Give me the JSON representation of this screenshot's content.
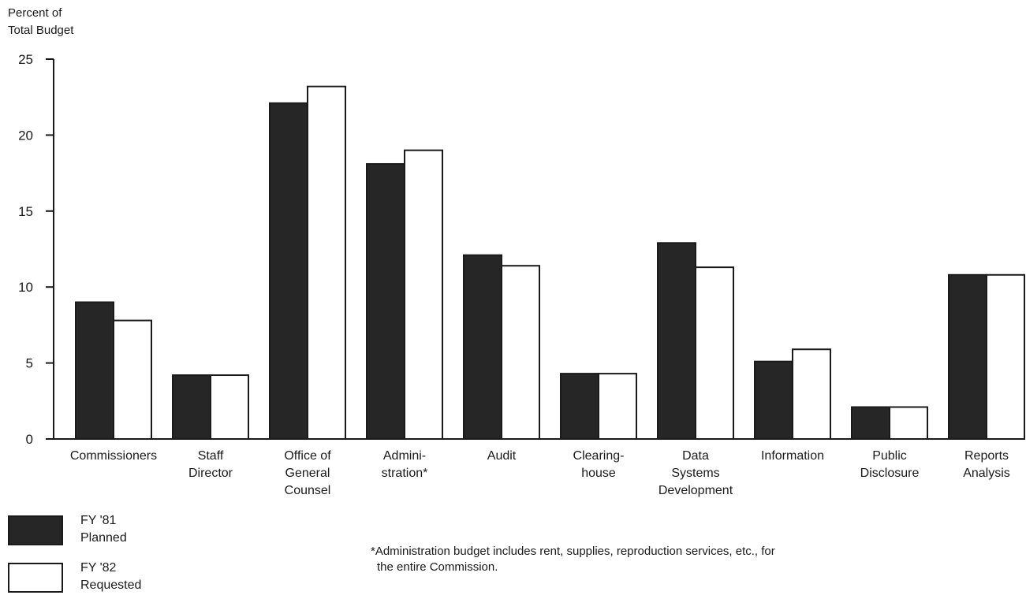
{
  "chart_data": {
    "type": "bar",
    "ylabel_lines": [
      "Percent of",
      "Total Budget"
    ],
    "ylim": [
      0,
      25
    ],
    "yticks": [
      "0",
      "5",
      "10",
      "15",
      "20",
      "25"
    ],
    "grid": false,
    "categories": [
      [
        "Commissioners"
      ],
      [
        "Staff",
        "Director"
      ],
      [
        "Office of",
        "General",
        "Counsel"
      ],
      [
        "Admini-",
        "stration*"
      ],
      [
        "Audit"
      ],
      [
        "Clearing-",
        "house"
      ],
      [
        "Data",
        "Systems",
        "Development"
      ],
      [
        "Information"
      ],
      [
        "Public",
        "Disclosure"
      ],
      [
        "Reports",
        "Analysis"
      ]
    ],
    "series": [
      {
        "name": "FY '81 Planned",
        "color": "#262626",
        "values": [
          9.0,
          4.2,
          22.1,
          18.1,
          12.1,
          4.3,
          12.9,
          5.1,
          2.1,
          10.8
        ]
      },
      {
        "name": "FY '82 Requested",
        "color": "#ffffff",
        "values": [
          7.8,
          4.2,
          23.2,
          19.0,
          11.4,
          4.3,
          11.3,
          5.9,
          2.1,
          10.8
        ]
      }
    ],
    "legend": [
      {
        "lines": [
          "FY '81",
          "Planned"
        ],
        "color": "#262626"
      },
      {
        "lines": [
          "FY '82",
          "Requested"
        ],
        "color": "#ffffff"
      }
    ],
    "legend_position": "bottom-left",
    "footnote_lines": [
      "*Administration budget includes rent, supplies, reproduction services, etc., for",
      "the entire Commission."
    ]
  }
}
